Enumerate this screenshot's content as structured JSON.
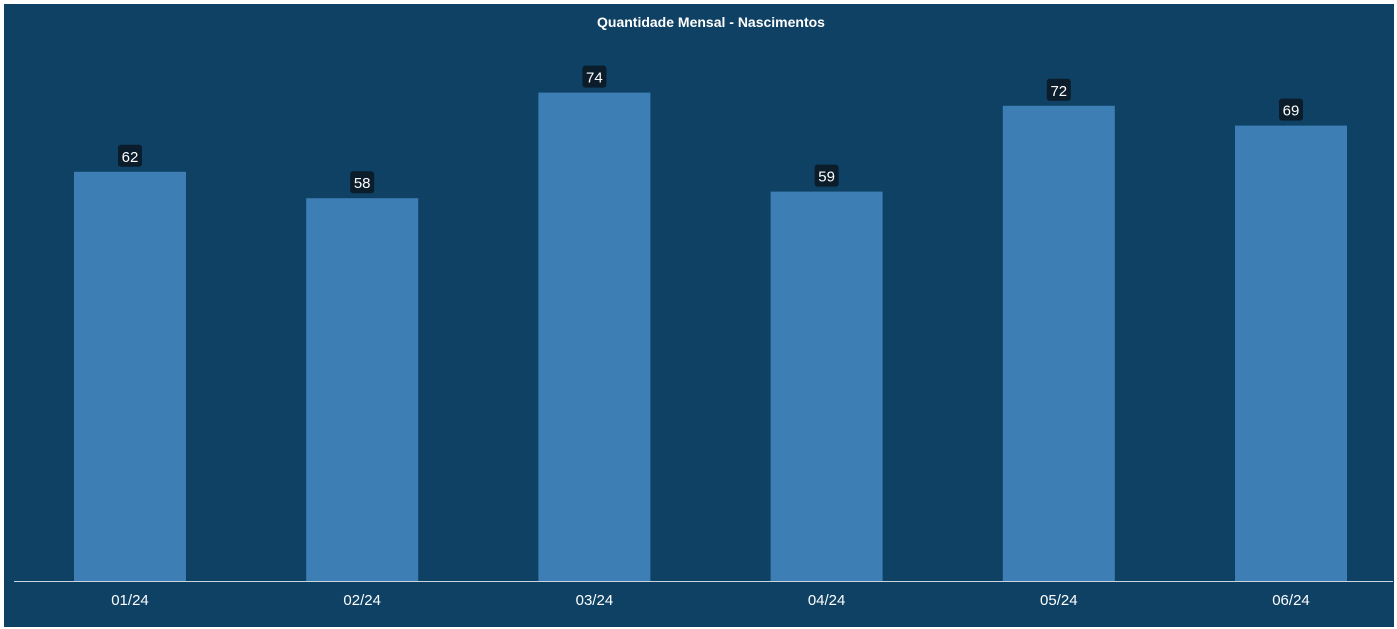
{
  "chart_data": {
    "type": "bar",
    "title": "Quantidade Mensal - Nascimentos",
    "categories": [
      "01/24",
      "02/24",
      "03/24",
      "04/24",
      "05/24",
      "06/24"
    ],
    "values": [
      62,
      58,
      74,
      59,
      72,
      69
    ],
    "ylim": [
      0,
      80
    ],
    "grid": false,
    "legend": "none",
    "data_labels": true,
    "colors": {
      "background": "#0e4164",
      "bar": "#3d7fb5",
      "label_box": "#0b1c2b",
      "text": "#ffffff",
      "axis": "#c9d6e0"
    }
  }
}
